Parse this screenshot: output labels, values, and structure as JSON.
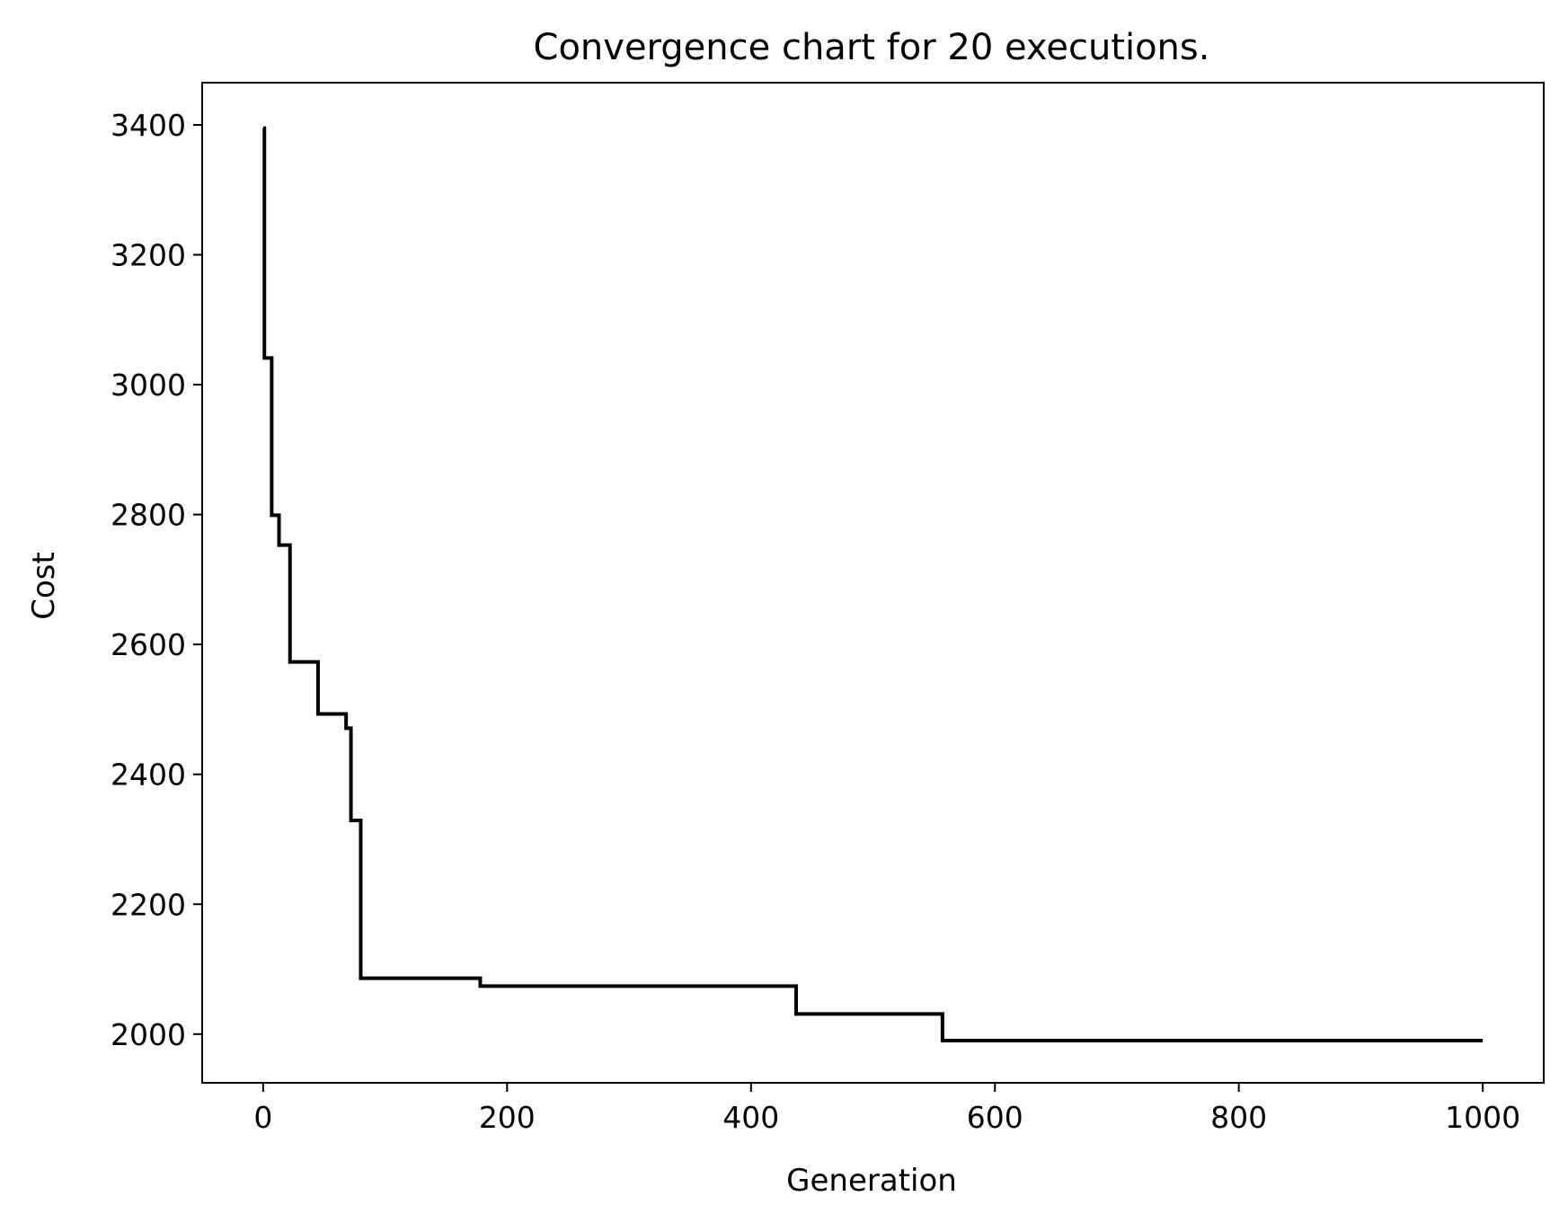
{
  "chart_data": {
    "type": "line",
    "title": "Convergence chart for 20 executions.",
    "xlabel": "Generation",
    "ylabel": "Cost",
    "xlim": [
      -50,
      1050
    ],
    "ylim": [
      1925,
      3465
    ],
    "xticks": [
      0,
      200,
      400,
      600,
      800,
      1000
    ],
    "yticks": [
      2000,
      2200,
      2400,
      2600,
      2800,
      3000,
      3200,
      3400
    ],
    "grid": false,
    "legend": "none",
    "line_color": "#000000",
    "step": true,
    "series": [
      {
        "x": [
          0,
          1,
          7,
          13,
          22,
          45,
          68,
          72,
          78,
          80,
          178,
          437,
          557,
          1000
        ],
        "y": [
          3395,
          3041,
          2799,
          2753,
          2573,
          2493,
          2471,
          2329,
          2329,
          2086,
          2074,
          2031,
          1990,
          1990
        ]
      }
    ]
  }
}
